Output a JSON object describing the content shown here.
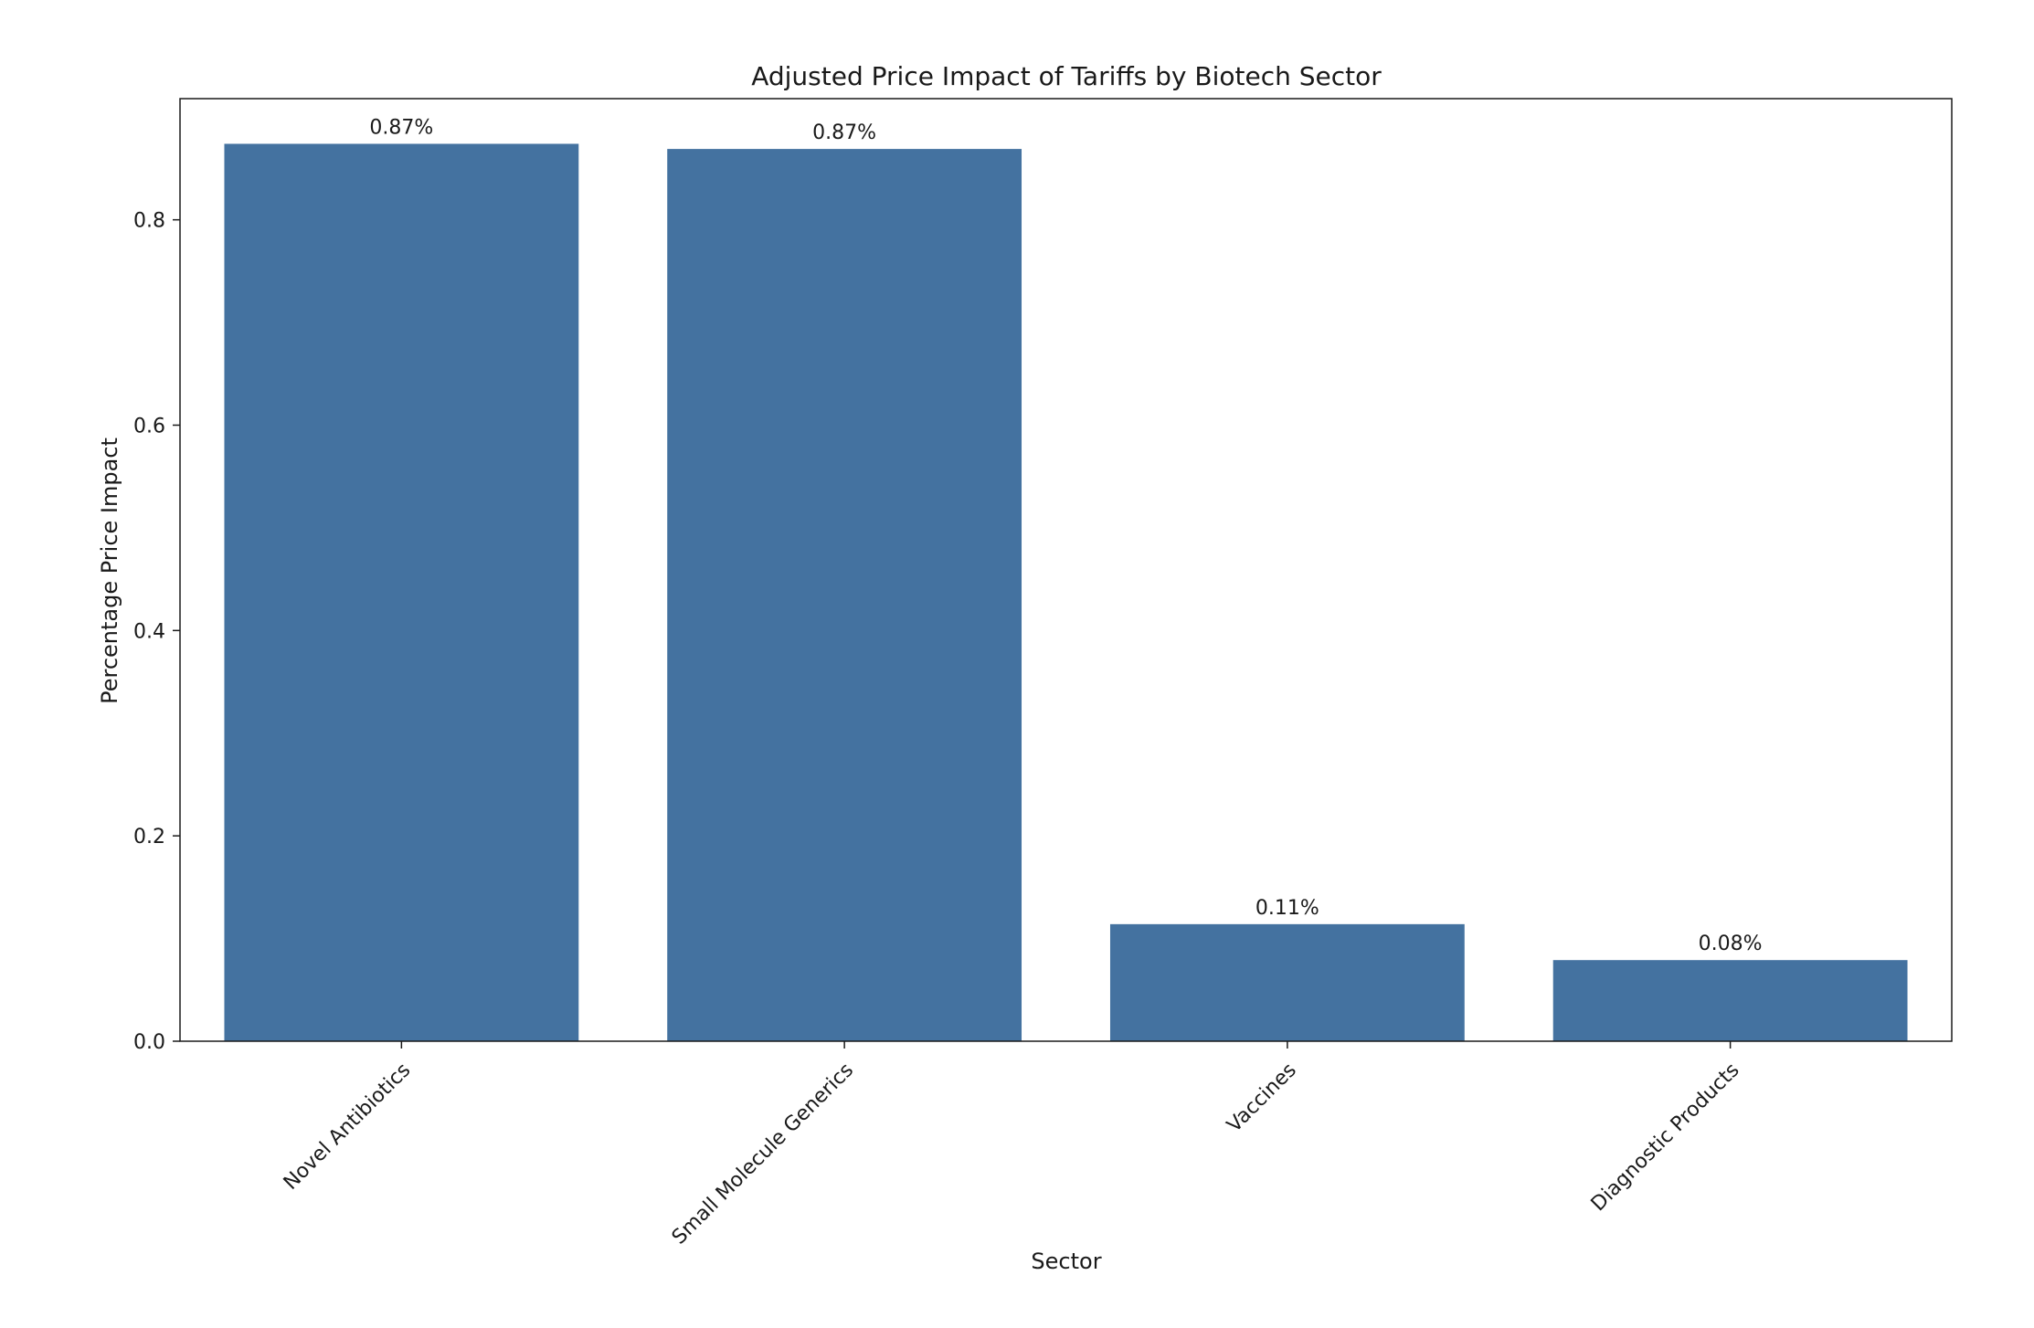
{
  "chart_data": {
    "type": "bar",
    "title": "Adjusted Price Impact of Tariffs by Biotech Sector",
    "xlabel": "Sector",
    "ylabel": "Percentage Price Impact",
    "categories": [
      "Novel Antibiotics",
      "Small Molecule Generics",
      "Vaccines",
      "Diagnostic Products"
    ],
    "values": [
      0.874,
      0.869,
      0.114,
      0.079
    ],
    "data_labels": [
      "0.87%",
      "0.87%",
      "0.11%",
      "0.08%"
    ],
    "yticks": [
      0.0,
      0.2,
      0.4,
      0.6,
      0.8
    ],
    "ytick_labels": [
      "0.0",
      "0.2",
      "0.4",
      "0.6",
      "0.8"
    ],
    "ylim": [
      0,
      0.918
    ],
    "grid": false,
    "legend": "none",
    "bar_color": "#4472a0"
  }
}
